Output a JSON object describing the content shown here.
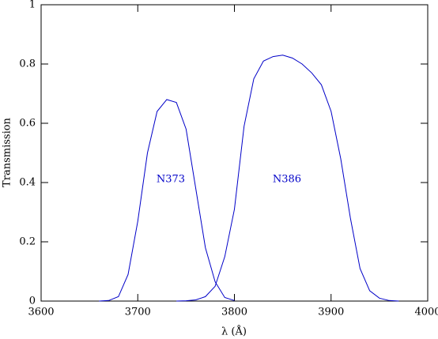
{
  "chart_data": {
    "type": "line",
    "xlabel": "λ (Å)",
    "ylabel": "Transmission",
    "xlim": [
      3600,
      4000
    ],
    "xticks": [
      3600,
      3700,
      3800,
      3900,
      4000
    ],
    "ylim": [
      0,
      1
    ],
    "yticks": [
      0,
      0.2,
      0.4,
      0.6,
      0.8,
      1
    ],
    "series": [
      {
        "name": "N373",
        "color": "#0000c8",
        "x": [
          3660,
          3670,
          3680,
          3690,
          3700,
          3710,
          3720,
          3730,
          3740,
          3750,
          3760,
          3770,
          3780,
          3790,
          3800
        ],
        "values": [
          0,
          0.002,
          0.015,
          0.09,
          0.27,
          0.5,
          0.64,
          0.68,
          0.67,
          0.58,
          0.38,
          0.18,
          0.065,
          0.012,
          0.002
        ]
      },
      {
        "name": "N386",
        "color": "#0000c8",
        "x": [
          3740,
          3750,
          3760,
          3770,
          3780,
          3790,
          3800,
          3810,
          3820,
          3830,
          3840,
          3850,
          3860,
          3870,
          3880,
          3890,
          3900,
          3910,
          3920,
          3930,
          3940,
          3950,
          3960,
          3970
        ],
        "values": [
          0,
          0.001,
          0.004,
          0.015,
          0.05,
          0.15,
          0.31,
          0.59,
          0.75,
          0.81,
          0.825,
          0.83,
          0.82,
          0.8,
          0.77,
          0.73,
          0.64,
          0.48,
          0.28,
          0.11,
          0.035,
          0.01,
          0.002,
          0
        ]
      }
    ]
  }
}
